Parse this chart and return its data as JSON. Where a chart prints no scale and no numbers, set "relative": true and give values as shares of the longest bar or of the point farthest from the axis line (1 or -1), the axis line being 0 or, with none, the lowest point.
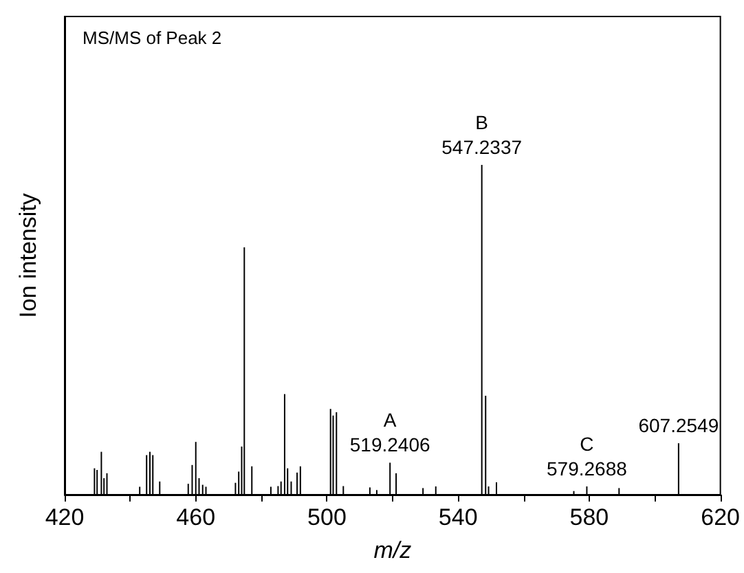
{
  "chart_data": {
    "type": "bar",
    "title": "MS/MS of Peak 2",
    "xlabel": "m/z",
    "ylabel": "Ion intensity",
    "relative": true,
    "x": [
      429.1,
      429.9,
      431.2,
      432.0,
      432.9,
      442.9,
      445.0,
      446.0,
      446.9,
      449.0,
      457.7,
      458.9,
      460.0,
      461.0,
      462.1,
      463.1,
      472.1,
      473.1,
      474.0,
      474.8,
      477.1,
      482.9,
      485.1,
      486.0,
      487.1,
      488.0,
      489.1,
      490.9,
      491.9,
      501.1,
      501.9,
      502.9,
      505.0,
      513.1,
      515.2,
      519.2406,
      521.1,
      529.3,
      533.2,
      547.2337,
      548.4,
      549.3,
      551.7,
      575.3,
      579.2688,
      589.1,
      607.2549
    ],
    "values": [
      0.08,
      0.075,
      0.13,
      0.05,
      0.065,
      0.024,
      0.12,
      0.13,
      0.12,
      0.04,
      0.033,
      0.09,
      0.16,
      0.05,
      0.03,
      0.024,
      0.036,
      0.07,
      0.146,
      0.75,
      0.086,
      0.024,
      0.026,
      0.04,
      0.305,
      0.08,
      0.04,
      0.067,
      0.086,
      0.26,
      0.24,
      0.25,
      0.026,
      0.022,
      0.014,
      0.097,
      0.065,
      0.02,
      0.025,
      1.0,
      0.3,
      0.025,
      0.0375,
      0.011,
      0.025,
      0.02,
      0.156
    ],
    "color": "#000000",
    "xlim": [
      420,
      620
    ],
    "xticks": [
      420,
      {
        "value": 440,
        "label": null
      },
      460,
      {
        "value": 480,
        "label": null
      },
      500,
      {
        "value": 520,
        "label": null
      },
      540,
      {
        "value": 560,
        "label": null
      },
      580,
      {
        "value": 600,
        "label": null
      },
      620
    ],
    "annotations": [
      {
        "text": "A\n519.2406",
        "x": 519.2406,
        "y": 0.097
      },
      {
        "text": "B\n547.2337",
        "x": 547.2337,
        "y": 1.0
      },
      {
        "text": "C\n579.2688",
        "x": 579.2688,
        "y": 0.025
      },
      {
        "text": "607.2549",
        "x": 607.2549,
        "y": 0.156
      }
    ],
    "grid": false
  }
}
